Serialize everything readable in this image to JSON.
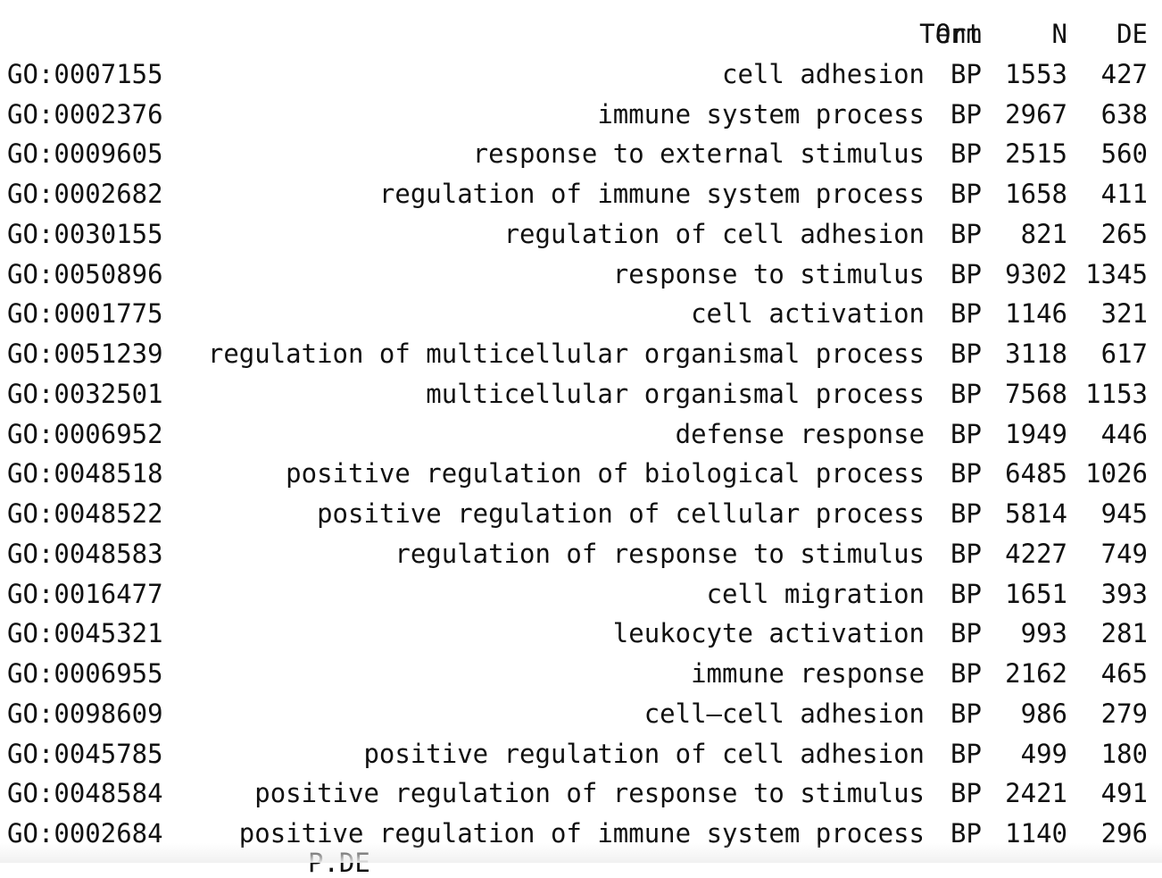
{
  "header": {
    "term": "Term",
    "ont": "Ont",
    "n": "N",
    "de": "DE"
  },
  "rows": [
    {
      "id": "GO:0007155",
      "term": "cell adhesion",
      "ont": "BP",
      "n": "1553",
      "de": "427"
    },
    {
      "id": "GO:0002376",
      "term": "immune system process",
      "ont": "BP",
      "n": "2967",
      "de": "638"
    },
    {
      "id": "GO:0009605",
      "term": "response to external stimulus",
      "ont": "BP",
      "n": "2515",
      "de": "560"
    },
    {
      "id": "GO:0002682",
      "term": "regulation of immune system process",
      "ont": "BP",
      "n": "1658",
      "de": "411"
    },
    {
      "id": "GO:0030155",
      "term": "regulation of cell adhesion",
      "ont": "BP",
      "n": "821",
      "de": "265"
    },
    {
      "id": "GO:0050896",
      "term": "response to stimulus",
      "ont": "BP",
      "n": "9302",
      "de": "1345"
    },
    {
      "id": "GO:0001775",
      "term": "cell activation",
      "ont": "BP",
      "n": "1146",
      "de": "321"
    },
    {
      "id": "GO:0051239",
      "term": "regulation of multicellular organismal process",
      "ont": "BP",
      "n": "3118",
      "de": "617"
    },
    {
      "id": "GO:0032501",
      "term": "multicellular organismal process",
      "ont": "BP",
      "n": "7568",
      "de": "1153"
    },
    {
      "id": "GO:0006952",
      "term": "defense response",
      "ont": "BP",
      "n": "1949",
      "de": "446"
    },
    {
      "id": "GO:0048518",
      "term": "positive regulation of biological process",
      "ont": "BP",
      "n": "6485",
      "de": "1026"
    },
    {
      "id": "GO:0048522",
      "term": "positive regulation of cellular process",
      "ont": "BP",
      "n": "5814",
      "de": "945"
    },
    {
      "id": "GO:0048583",
      "term": "regulation of response to stimulus",
      "ont": "BP",
      "n": "4227",
      "de": "749"
    },
    {
      "id": "GO:0016477",
      "term": "cell migration",
      "ont": "BP",
      "n": "1651",
      "de": "393"
    },
    {
      "id": "GO:0045321",
      "term": "leukocyte activation",
      "ont": "BP",
      "n": "993",
      "de": "281"
    },
    {
      "id": "GO:0006955",
      "term": "immune response",
      "ont": "BP",
      "n": "2162",
      "de": "465"
    },
    {
      "id": "GO:0098609",
      "term": "cell–cell adhesion",
      "ont": "BP",
      "n": "986",
      "de": "279"
    },
    {
      "id": "GO:0045785",
      "term": "positive regulation of cell adhesion",
      "ont": "BP",
      "n": "499",
      "de": "180"
    },
    {
      "id": "GO:0048584",
      "term": "positive regulation of response to stimulus",
      "ont": "BP",
      "n": "2421",
      "de": "491"
    },
    {
      "id": "GO:0002684",
      "term": "positive regulation of immune system process",
      "ont": "BP",
      "n": "1140",
      "de": "296"
    }
  ],
  "cutoff_text": "P.DE"
}
